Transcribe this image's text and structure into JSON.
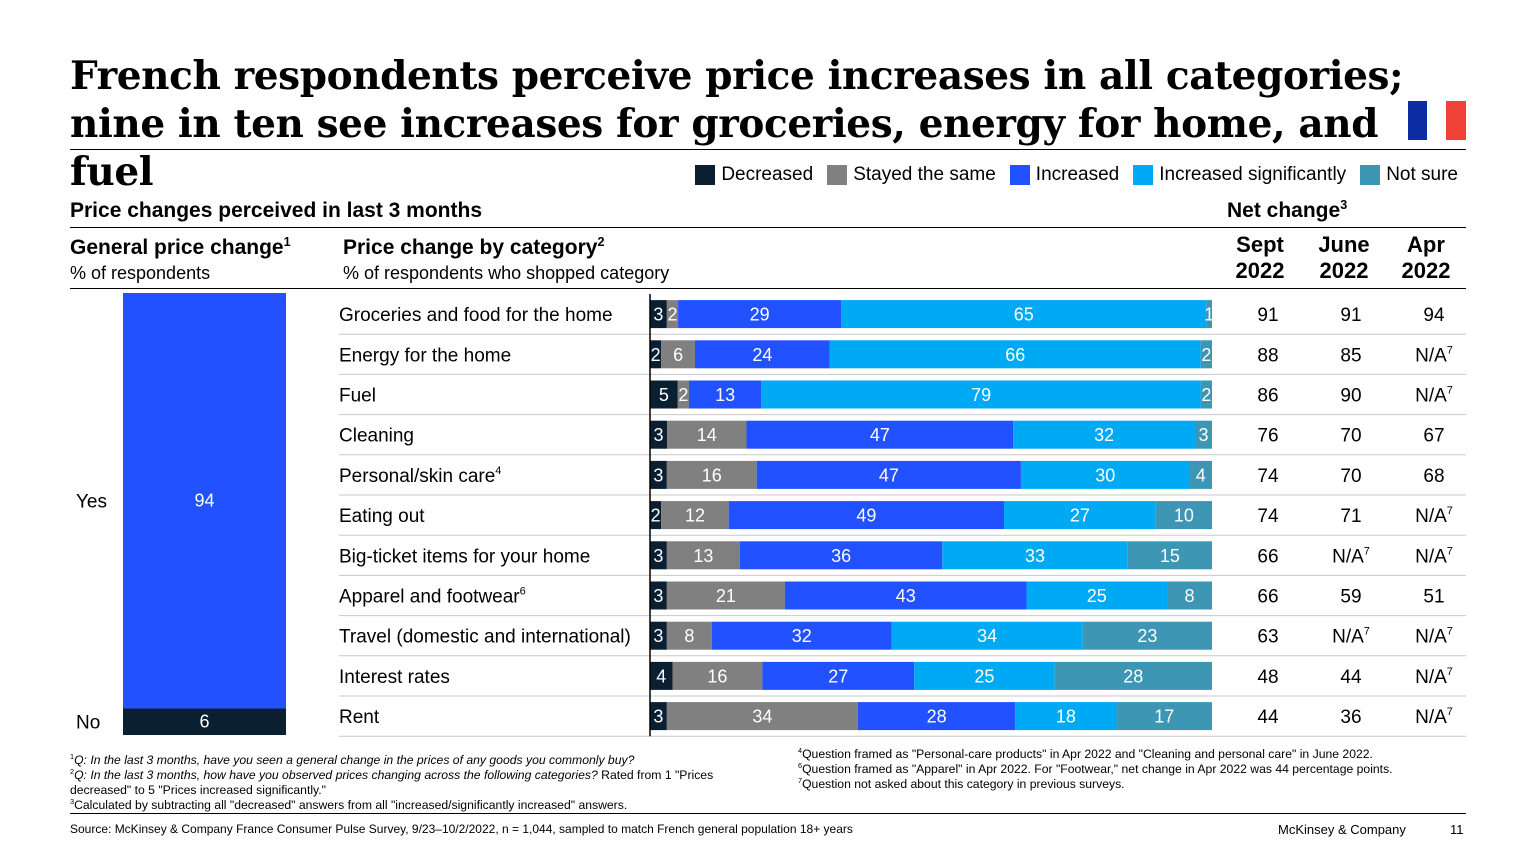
{
  "title": "French respondents perceive price increases in all categories; nine in ten see increases for groceries, energy for home, and fuel",
  "flag_colors": [
    "#0b2fa3",
    "#ffffff",
    "#ef4135"
  ],
  "legend": [
    {
      "label": "Decreased",
      "color": "#0b1f33"
    },
    {
      "label": "Stayed the same",
      "color": "#808080"
    },
    {
      "label": "Increased",
      "color": "#2251ff"
    },
    {
      "label": "Increased significantly",
      "color": "#00a9f4"
    },
    {
      "label": "Not sure",
      "color": "#3c96b4"
    }
  ],
  "section_heading": "Price changes perceived in last 3 months",
  "general": {
    "heading": "General price change",
    "heading_sup": "1",
    "subheading": "% of respondents"
  },
  "category": {
    "heading": "Price change by category",
    "heading_sup": "2",
    "subheading": "% of respondents who shopped category"
  },
  "net": {
    "heading": "Net change",
    "heading_sup": "3",
    "col1": [
      "Sept",
      "2022"
    ],
    "col2": [
      "June",
      "2022"
    ],
    "col3": [
      "Apr",
      "2022"
    ]
  },
  "chart_data": [
    {
      "type": "bar",
      "title": "General price change",
      "ylabel": "% of respondents",
      "categories": [
        "Yes",
        "No"
      ],
      "values": [
        94,
        6
      ],
      "colors": [
        "#2251ff",
        "#0b1f33"
      ]
    },
    {
      "type": "bar",
      "stacked": true,
      "orientation": "horizontal",
      "title": "Price change by category",
      "xlabel": "% of respondents who shopped category",
      "categories": [
        "Groceries and food for the home",
        "Energy for the home",
        "Fuel",
        "Cleaning",
        "Personal/skin care",
        "Eating out",
        "Big-ticket items for your home",
        "Apparel and footwear",
        "Travel (domestic and international)",
        "Interest rates",
        "Rent"
      ],
      "category_sups": [
        "",
        "",
        "",
        "",
        "4",
        "",
        "",
        "6",
        "",
        "",
        ""
      ],
      "series": [
        {
          "name": "Decreased",
          "color": "#0b1f33",
          "values": [
            3,
            2,
            5,
            3,
            3,
            2,
            3,
            3,
            3,
            4,
            3
          ]
        },
        {
          "name": "Stayed the same",
          "color": "#808080",
          "values": [
            2,
            6,
            2,
            14,
            16,
            12,
            13,
            21,
            8,
            16,
            34
          ]
        },
        {
          "name": "Increased",
          "color": "#2251ff",
          "values": [
            29,
            24,
            13,
            47,
            47,
            49,
            36,
            43,
            32,
            27,
            28
          ]
        },
        {
          "name": "Increased significantly",
          "color": "#00a9f4",
          "values": [
            65,
            66,
            79,
            32,
            30,
            27,
            33,
            25,
            34,
            25,
            18
          ]
        },
        {
          "name": "Not sure",
          "color": "#3c96b4",
          "values": [
            1,
            2,
            2,
            3,
            4,
            10,
            15,
            8,
            23,
            28,
            17
          ]
        }
      ],
      "xlim": [
        0,
        100
      ]
    },
    {
      "type": "table",
      "title": "Net change",
      "columns": [
        "Sept 2022",
        "June 2022",
        "Apr 2022"
      ],
      "rows": [
        [
          "91",
          "91",
          "94"
        ],
        [
          "88",
          "85",
          "N/A"
        ],
        [
          "86",
          "90",
          "N/A"
        ],
        [
          "76",
          "70",
          "67"
        ],
        [
          "74",
          "70",
          "68"
        ],
        [
          "74",
          "71",
          "N/A"
        ],
        [
          "66",
          "N/A",
          "N/A"
        ],
        [
          "66",
          "59",
          "51"
        ],
        [
          "63",
          "N/A",
          "N/A"
        ],
        [
          "48",
          "44",
          "N/A"
        ],
        [
          "44",
          "36",
          "N/A"
        ]
      ],
      "na_sup": "7"
    }
  ],
  "footnotes_left": [
    {
      "sup": "1",
      "text": "Q: In the last 3 months, have you seen a general change in the prices of any goods you commonly buy?"
    },
    {
      "sup": "2",
      "text": "Q: In the last 3 months, how have you observed prices changing across the following categories?",
      "tail": " Rated from 1 \"Prices decreased\" to 5 \"Prices increased significantly.\""
    },
    {
      "sup": "3",
      "text": "Calculated by subtracting all \"decreased\" answers from all \"increased/significantly increased\" answers."
    }
  ],
  "footnotes_right": [
    {
      "sup": "4",
      "text": "Question framed as \"Personal-care products\" in Apr 2022 and \"Cleaning and personal care\" in June 2022."
    },
    {
      "sup": "6",
      "text": "Question framed as \"Apparel\" in Apr 2022. For \"Footwear,\" net change in Apr 2022 was 44 percentage points."
    },
    {
      "sup": "7",
      "text": "Question not asked about this category in previous surveys."
    }
  ],
  "source": "Source: McKinsey & Company France Consumer Pulse Survey, 9/23–10/2/2022, n = 1,044, sampled to match French general population 18+ years",
  "brand": "McKinsey & Company",
  "page_number": "11"
}
